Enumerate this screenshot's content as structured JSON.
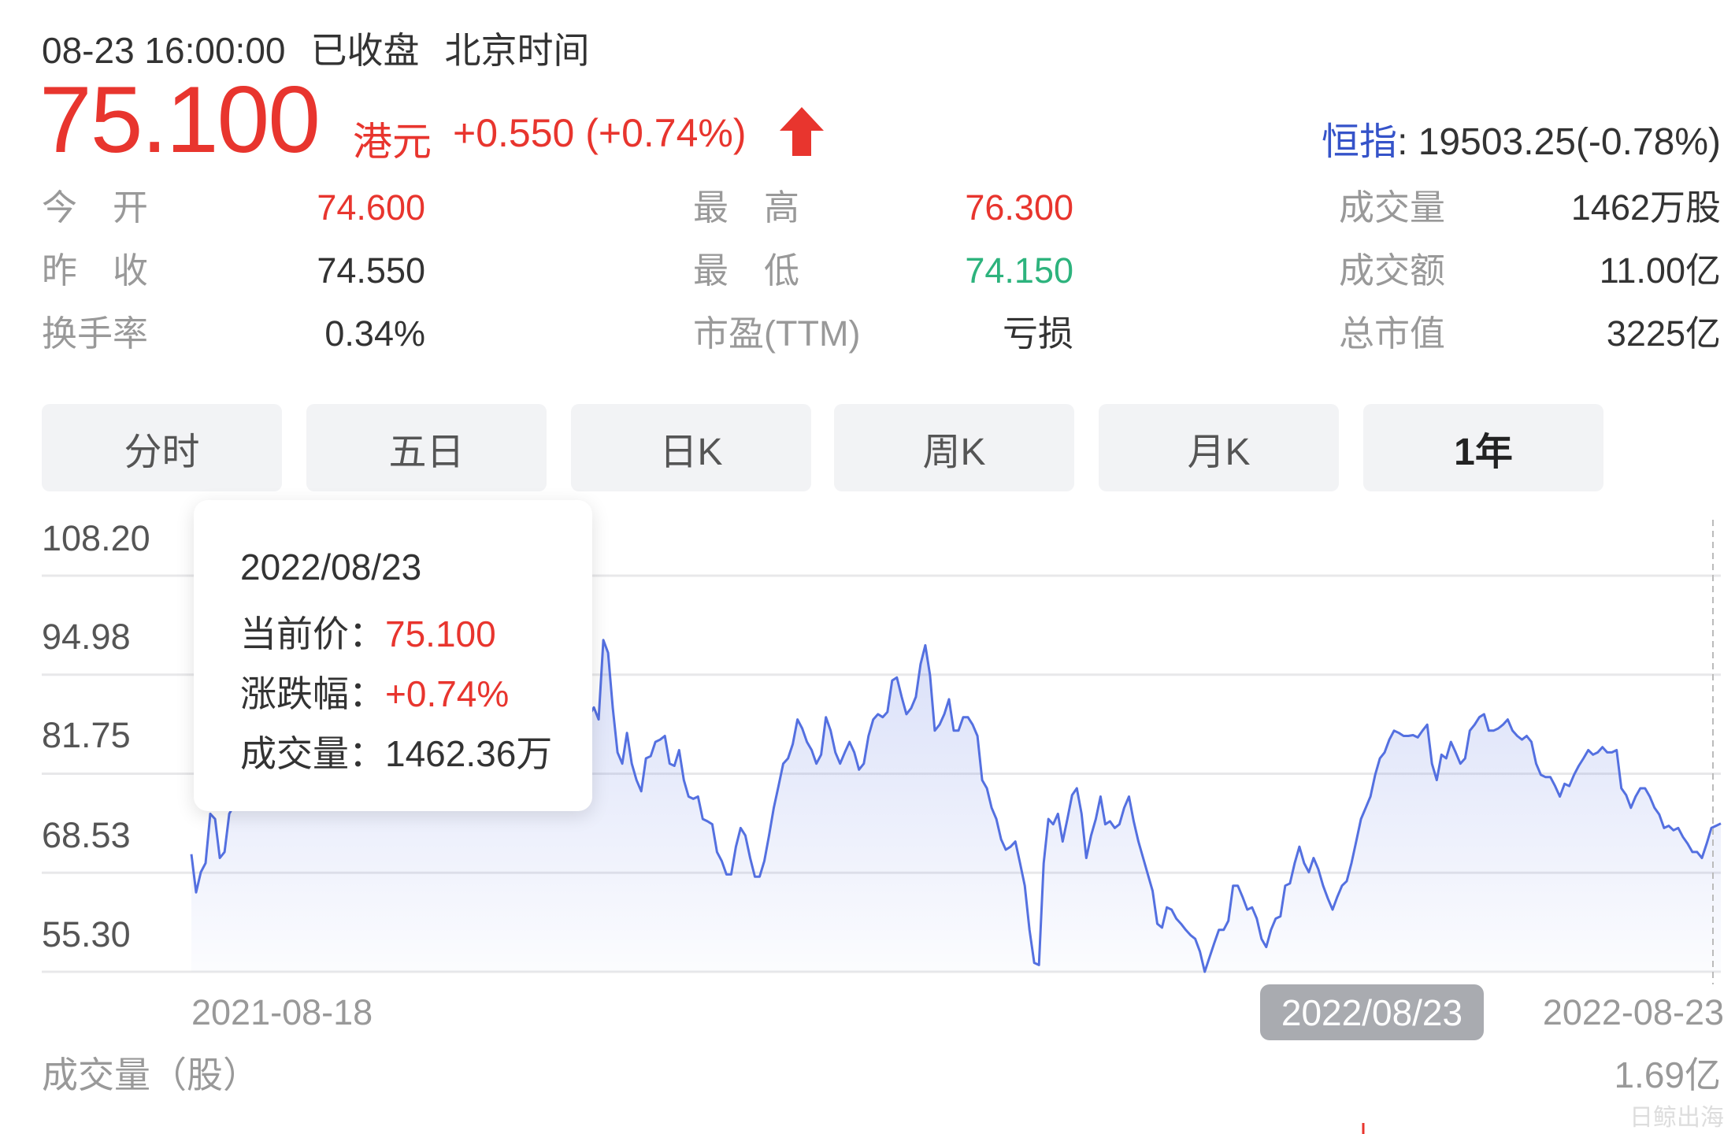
{
  "header": {
    "datetime": "08-23 16:00:00",
    "status": "已收盘",
    "timezone": "北京时间"
  },
  "quote": {
    "price": "75.100",
    "currency": "港元",
    "change": "+0.550 (+0.74%)",
    "direction_icon": "arrow-up-icon",
    "index_label": "恒指",
    "index_value": ": 19503.25(-0.78%)"
  },
  "stats": [
    [
      {
        "label": "今　开",
        "value": "74.600",
        "tone": "red"
      },
      {
        "label": "最　高",
        "value": "76.300",
        "tone": "red"
      },
      {
        "label": "成交量",
        "value": "1462万股",
        "tone": ""
      }
    ],
    [
      {
        "label": "昨　收",
        "value": "74.550",
        "tone": ""
      },
      {
        "label": "最　低",
        "value": "74.150",
        "tone": "green"
      },
      {
        "label": "成交额",
        "value": "11.00亿",
        "tone": ""
      }
    ],
    [
      {
        "label": "换手率",
        "value": "0.34%",
        "tone": ""
      },
      {
        "label": "市盈(TTM)",
        "value": "亏损",
        "tone": ""
      },
      {
        "label": "总市值",
        "value": "3225亿",
        "tone": ""
      }
    ]
  ],
  "tabs": [
    {
      "label": "分时",
      "active": false
    },
    {
      "label": "五日",
      "active": false
    },
    {
      "label": "日K",
      "active": false
    },
    {
      "label": "周K",
      "active": false
    },
    {
      "label": "月K",
      "active": false
    },
    {
      "label": "1年",
      "active": true
    }
  ],
  "tooltip": {
    "date": "2022/08/23",
    "price_label": "当前价：",
    "price": "75.100",
    "change_label": "涨跌幅：",
    "change": "+0.74%",
    "volume_label": "成交量：",
    "volume": "1462.36万"
  },
  "colors": {
    "up": "#e8352e",
    "down": "#2db37d",
    "line": "#5470e0",
    "index": "#3553c9"
  },
  "chart_data": {
    "type": "area",
    "ylim": [
      55.3,
      108.2
    ],
    "y_ticks": [
      "108.20",
      "94.98",
      "81.75",
      "68.53",
      "55.30"
    ],
    "x_start_label": "2021-08-18",
    "x_end_label": "2022-08-23",
    "crosshair_label": "2022/08/23",
    "grid": true,
    "series": [
      {
        "values": [
          71.0,
          65.9,
          68.6,
          69.8,
          76.4,
          75.7,
          70.5,
          71.3,
          76.4,
          77.5,
          78.8,
          80.2,
          79.5,
          81.0,
          82.4,
          81.8,
          83.5,
          84.9,
          84.2,
          85.6,
          86.8,
          86.0,
          87.5,
          88.9,
          88.1,
          86.9,
          87.8,
          89.2,
          90.5,
          89.8,
          88.6,
          87.4,
          88.3,
          89.7,
          91.0,
          90.2,
          89.1,
          88.0,
          86.8,
          87.6,
          88.9,
          90.3,
          91.6,
          92.4,
          91.5,
          90.1,
          89.0,
          88.2,
          87.1,
          86.3,
          87.4,
          88.8,
          90.0,
          91.3,
          90.6,
          89.4,
          88.5,
          89.9,
          91.2,
          92.5,
          93.1,
          92.0,
          90.8,
          89.6,
          88.7,
          87.9,
          88.6,
          89.8,
          91.0,
          90.3,
          89.2,
          88.4,
          87.6,
          88.5,
          89.6,
          90.8,
          91.9,
          92.8,
          92.1,
          90.9,
          89.8,
          88.9,
          88.2,
          88.7,
          89.5,
          90.6,
          89.0,
          99.6,
          97.9,
          90.5,
          84.6,
          83.1,
          87.2,
          83.1,
          80.9,
          79.4,
          83.8,
          84.1,
          86.0,
          86.3,
          86.8,
          83.1,
          82.8,
          84.9,
          80.9,
          78.7,
          78.4,
          78.7,
          75.7,
          75.4,
          75.0,
          71.3,
          70.1,
          68.3,
          68.3,
          72.0,
          74.5,
          73.5,
          70.5,
          68.0,
          68.0,
          70.1,
          73.5,
          77.2,
          80.1,
          83.1,
          83.8,
          85.7,
          89.0,
          87.8,
          86.0,
          84.9,
          83.1,
          84.3,
          89.3,
          87.5,
          84.6,
          83.1,
          84.6,
          86.0,
          84.6,
          82.3,
          83.1,
          86.8,
          89.0,
          89.7,
          89.3,
          90.0,
          94.2,
          94.6,
          92.0,
          89.7,
          90.5,
          92.0,
          96.4,
          98.9,
          94.9,
          87.5,
          88.3,
          89.7,
          91.7,
          87.5,
          87.5,
          89.3,
          89.3,
          88.3,
          86.8,
          80.9,
          79.8,
          77.2,
          75.7,
          73.0,
          71.6,
          72.0,
          72.7,
          69.8,
          66.8,
          60.9,
          56.5,
          56.2,
          69.8,
          75.7,
          75.0,
          76.4,
          72.7,
          75.7,
          78.9,
          79.8,
          76.4,
          70.5,
          73.5,
          75.7,
          78.7,
          75.0,
          75.4,
          74.5,
          75.0,
          77.2,
          78.7,
          75.4,
          72.7,
          70.5,
          68.3,
          66.1,
          61.7,
          61.2,
          63.9,
          63.6,
          62.4,
          61.7,
          60.9,
          60.2,
          59.7,
          58.0,
          55.3,
          57.2,
          59.1,
          60.9,
          60.9,
          62.1,
          66.8,
          66.8,
          65.3,
          63.6,
          63.9,
          62.4,
          59.7,
          58.6,
          60.9,
          62.4,
          62.7,
          66.8,
          67.1,
          69.8,
          72.0,
          69.8,
          68.6,
          70.5,
          69.0,
          66.8,
          65.1,
          63.6,
          65.3,
          66.8,
          67.4,
          69.8,
          72.7,
          75.7,
          77.2,
          78.7,
          81.6,
          83.8,
          84.6,
          86.3,
          87.5,
          87.2,
          86.8,
          86.8,
          86.9,
          86.6,
          87.5,
          88.3,
          83.1,
          80.9,
          84.3,
          83.8,
          86.0,
          84.6,
          83.1,
          83.8,
          87.5,
          88.3,
          89.3,
          89.7,
          87.5,
          87.5,
          87.8,
          88.3,
          89.0,
          87.5,
          86.8,
          86.3,
          86.8,
          86.0,
          83.1,
          81.6,
          81.3,
          81.3,
          80.1,
          78.7,
          80.4,
          80.1,
          81.6,
          82.8,
          83.8,
          84.9,
          84.3,
          84.6,
          85.3,
          84.6,
          84.6,
          84.9,
          79.8,
          78.9,
          77.2,
          78.7,
          79.8,
          79.8,
          78.7,
          77.2,
          76.3,
          74.5,
          74.8,
          74.2,
          74.5,
          73.3,
          72.4,
          71.3,
          71.3,
          70.5,
          72.4,
          74.5,
          74.8,
          75.1
        ]
      }
    ]
  },
  "volume": {
    "title": "成交量（股）",
    "max_label": "1.69亿"
  },
  "watermark": "日鲸出海"
}
